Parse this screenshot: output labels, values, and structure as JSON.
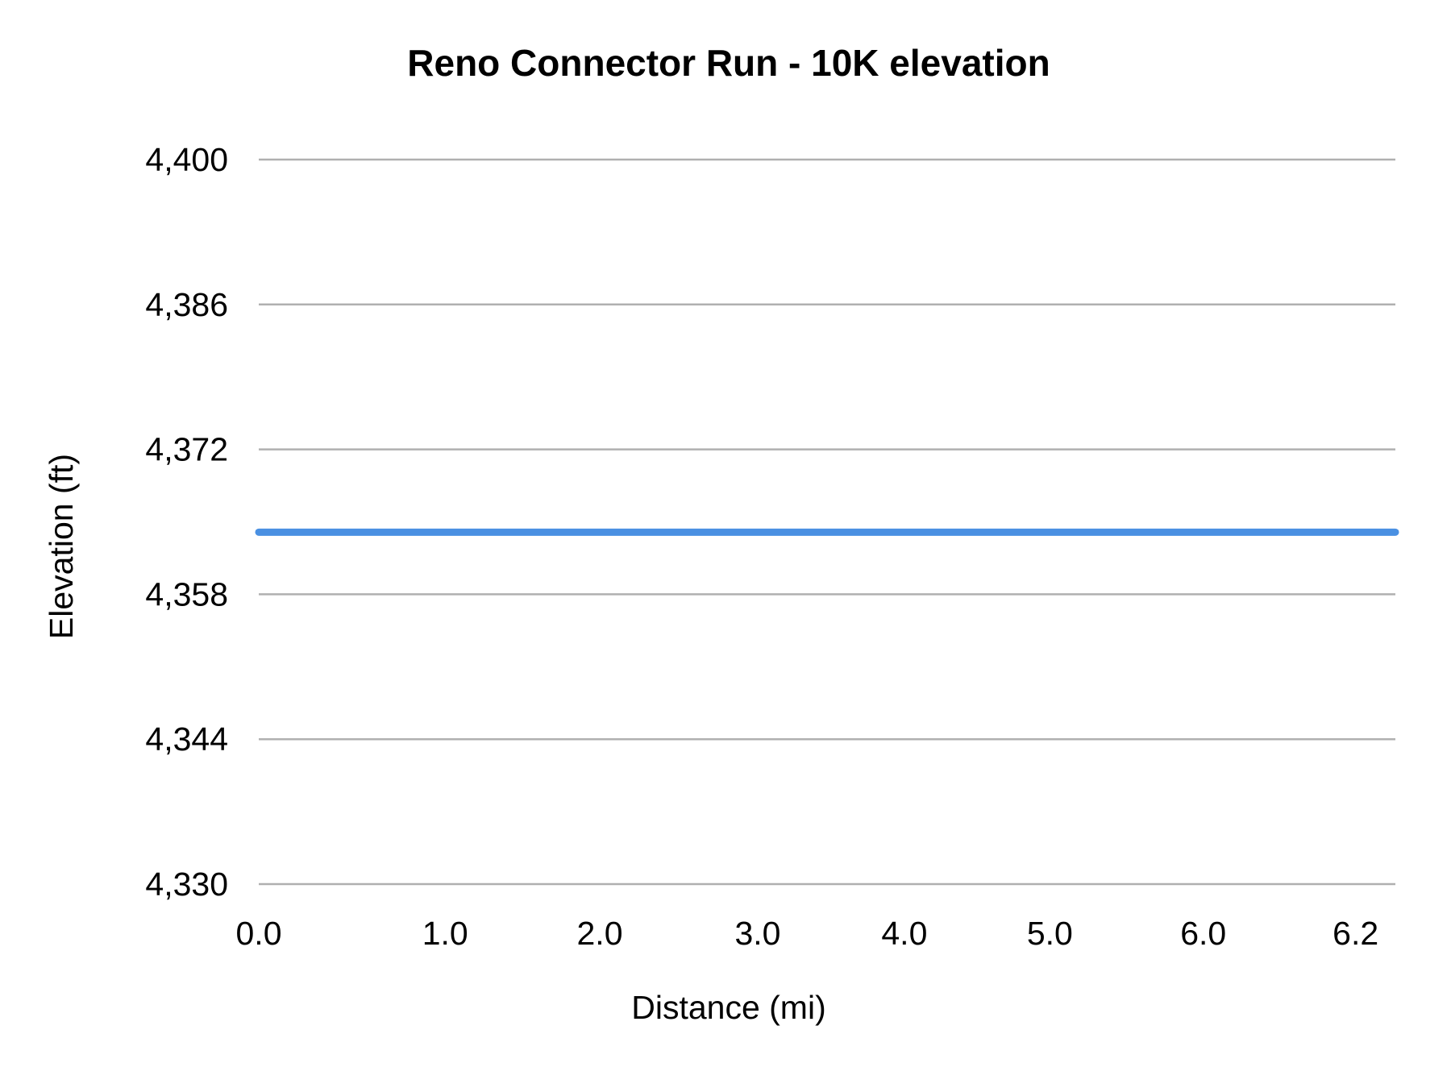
{
  "chart_data": {
    "type": "line",
    "title": "Reno Connector Run - 10K elevation",
    "xlabel": "Distance (mi)",
    "ylabel": "Elevation (ft)",
    "xlim": [
      0.0,
      6.2
    ],
    "ylim": [
      4330,
      4400
    ],
    "x_ticks": [
      "0.0",
      "1.0",
      "2.0",
      "3.0",
      "4.0",
      "5.0",
      "6.0",
      "6.2"
    ],
    "y_ticks": [
      "4,330",
      "4,344",
      "4,358",
      "4,372",
      "4,386",
      "4,400"
    ],
    "y_tick_values": [
      4330,
      4344,
      4358,
      4372,
      4386,
      4400
    ],
    "grid": true,
    "legend": "none",
    "series": [
      {
        "x": [
          0.0,
          6.2
        ],
        "y": [
          4364,
          4364
        ],
        "color": "#4a90e2"
      }
    ]
  }
}
